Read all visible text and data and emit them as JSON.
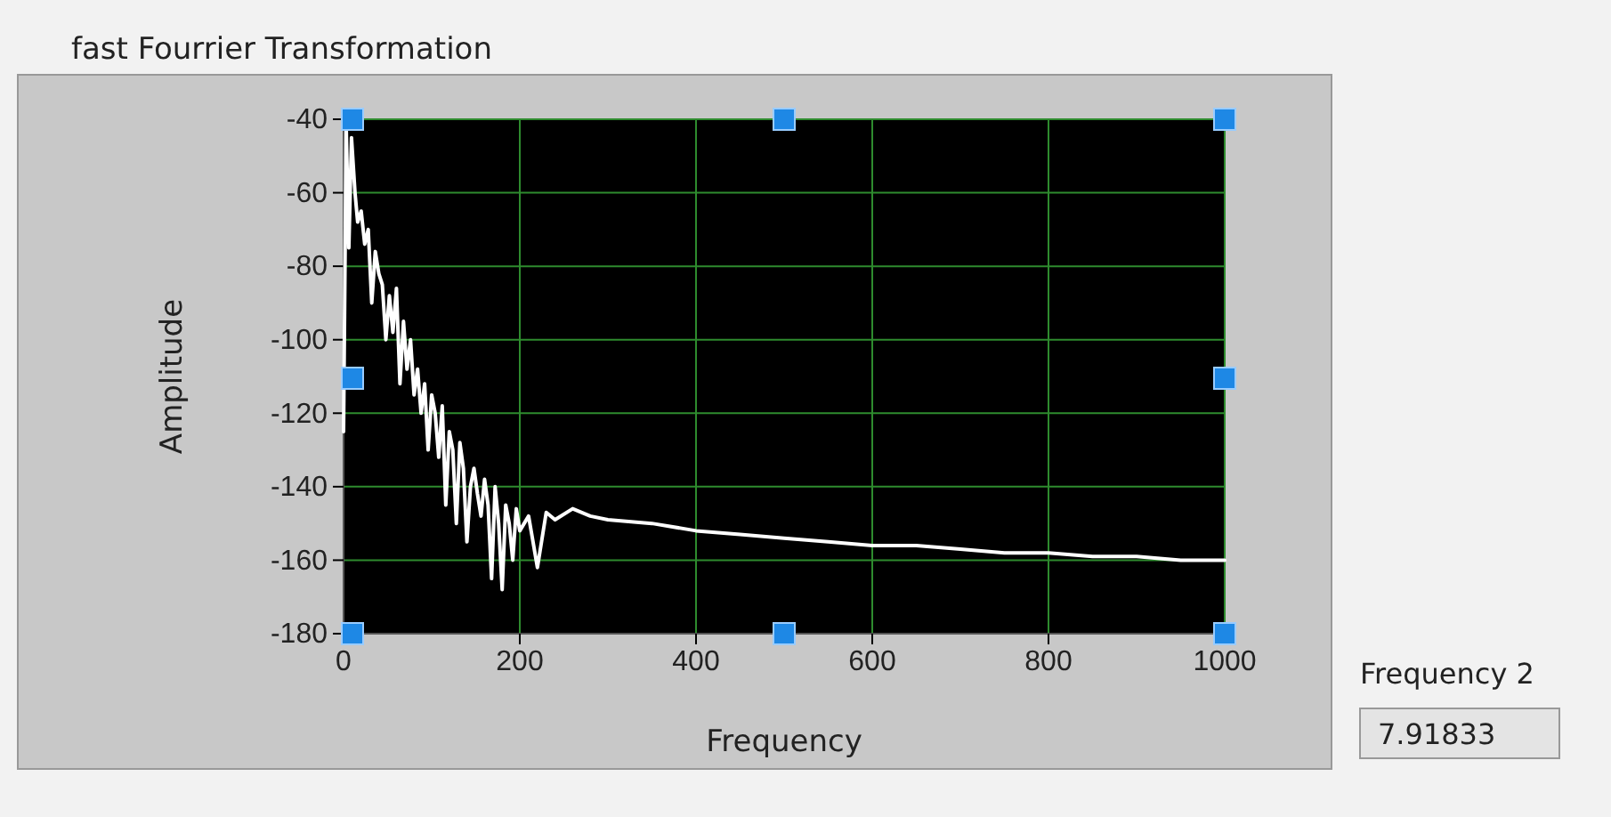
{
  "chart_data": {
    "type": "line",
    "title": "fast Fourrier Transformation",
    "xlabel": "Frequency",
    "ylabel": "Amplitude",
    "xlim": [
      0,
      1000
    ],
    "xticks": [
      0,
      200,
      400,
      600,
      800,
      1000
    ],
    "ylim": [
      -180,
      -40
    ],
    "yticks": [
      -180,
      -160,
      -140,
      -120,
      -100,
      -80,
      -60,
      -40
    ],
    "grid": true,
    "annotations": [
      "Frequency 2",
      "7.91833"
    ],
    "series": [
      {
        "color": "#ffffff",
        "x": [
          0,
          3,
          6,
          9,
          13,
          16,
          20,
          24,
          28,
          32,
          36,
          40,
          44,
          48,
          52,
          56,
          60,
          64,
          68,
          72,
          76,
          80,
          84,
          88,
          92,
          96,
          100,
          104,
          108,
          112,
          116,
          120,
          124,
          128,
          132,
          136,
          140,
          144,
          148,
          152,
          156,
          160,
          164,
          168,
          172,
          176,
          180,
          184,
          188,
          192,
          196,
          200,
          210,
          220,
          230,
          240,
          260,
          280,
          300,
          350,
          400,
          450,
          500,
          550,
          600,
          650,
          700,
          750,
          800,
          850,
          900,
          950,
          1000
        ],
        "values": [
          -125,
          -42,
          -75,
          -45,
          -60,
          -68,
          -65,
          -74,
          -70,
          -90,
          -76,
          -82,
          -85,
          -100,
          -88,
          -98,
          -86,
          -112,
          -95,
          -108,
          -100,
          -115,
          -108,
          -120,
          -112,
          -130,
          -115,
          -120,
          -132,
          -118,
          -145,
          -125,
          -130,
          -150,
          -128,
          -135,
          -155,
          -140,
          -135,
          -142,
          -148,
          -138,
          -145,
          -165,
          -140,
          -150,
          -168,
          -145,
          -150,
          -160,
          -146,
          -152,
          -148,
          -162,
          -147,
          -149,
          -146,
          -148,
          -149,
          -150,
          -152,
          -153,
          -154,
          -155,
          -156,
          -156,
          -157,
          -158,
          -158,
          -159,
          -159,
          -160,
          -160
        ]
      }
    ]
  }
}
